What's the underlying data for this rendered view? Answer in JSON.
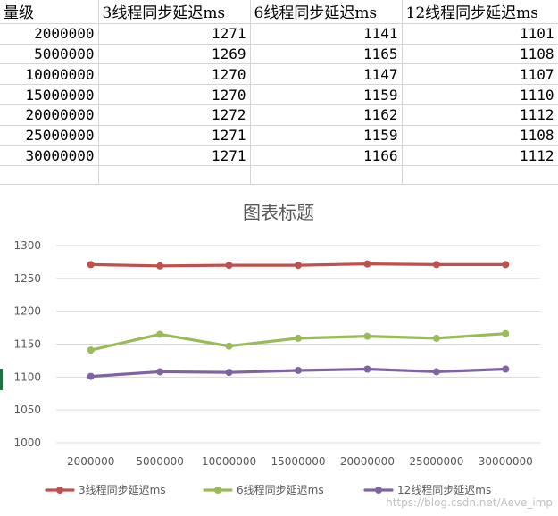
{
  "sheet": {
    "headers": [
      "量级",
      "3线程同步延迟ms",
      "6线程同步延迟ms",
      "12线程同步延迟ms"
    ],
    "rows": [
      [
        "2000000",
        "1271",
        "1141",
        "1101"
      ],
      [
        "5000000",
        "1269",
        "1165",
        "1108"
      ],
      [
        "10000000",
        "1270",
        "1147",
        "1107"
      ],
      [
        "15000000",
        "1270",
        "1159",
        "1110"
      ],
      [
        "20000000",
        "1272",
        "1162",
        "1112"
      ],
      [
        "25000000",
        "1271",
        "1159",
        "1108"
      ],
      [
        "30000000",
        "1271",
        "1166",
        "1112"
      ]
    ]
  },
  "chart_data": {
    "type": "line",
    "title": "图表标题",
    "categories": [
      "2000000",
      "5000000",
      "10000000",
      "15000000",
      "20000000",
      "25000000",
      "30000000"
    ],
    "ylim": [
      1000,
      1300
    ],
    "yticks": [
      1000,
      1050,
      1100,
      1150,
      1200,
      1250,
      1300
    ],
    "grid": true,
    "legend": "bottom",
    "series": [
      {
        "name": "3线程同步延迟ms",
        "color": "#c0504d",
        "values": [
          1271,
          1269,
          1270,
          1270,
          1272,
          1271,
          1271
        ]
      },
      {
        "name": "6线程同步延迟ms",
        "color": "#9bbb59",
        "values": [
          1141,
          1165,
          1147,
          1159,
          1162,
          1159,
          1166
        ]
      },
      {
        "name": "12线程同步延迟ms",
        "color": "#8064a2",
        "values": [
          1101,
          1108,
          1107,
          1110,
          1112,
          1108,
          1112
        ]
      }
    ]
  },
  "watermark": "https://blog.csdn.net/Aeve_imp"
}
